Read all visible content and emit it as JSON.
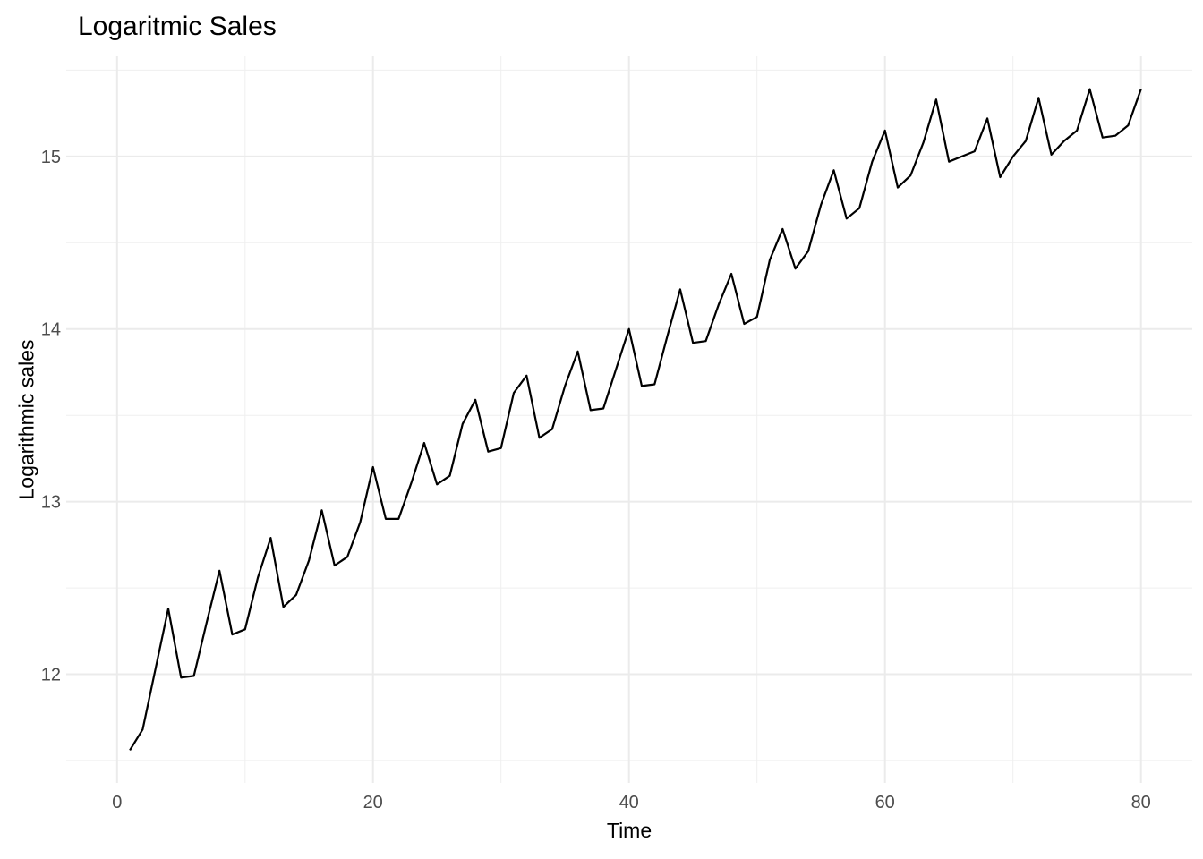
{
  "chart_data": {
    "type": "line",
    "title": "Logaritmic Sales",
    "xlabel": "Time",
    "ylabel": "Logarithmic sales",
    "legend": "none",
    "grid": true,
    "x_ticks": [
      0,
      20,
      40,
      60,
      80
    ],
    "x_minor_ticks": [
      10,
      30,
      50,
      70
    ],
    "y_ticks": [
      12,
      13,
      14,
      15
    ],
    "y_minor_ticks": [
      11.5,
      12.5,
      13.5,
      14.5,
      15.5
    ],
    "x_domain": [
      -3.97,
      84.01
    ],
    "y_domain": [
      11.37,
      15.58
    ],
    "x": [
      1,
      2,
      3,
      4,
      5,
      6,
      7,
      8,
      9,
      10,
      11,
      12,
      13,
      14,
      15,
      16,
      17,
      18,
      19,
      20,
      21,
      22,
      23,
      24,
      25,
      26,
      27,
      28,
      29,
      30,
      31,
      32,
      33,
      34,
      35,
      36,
      37,
      38,
      39,
      40,
      41,
      42,
      43,
      44,
      45,
      46,
      47,
      48,
      49,
      50,
      51,
      52,
      53,
      54,
      55,
      56,
      57,
      58,
      59,
      60,
      61,
      62,
      63,
      64,
      65,
      66,
      67,
      68,
      69,
      70,
      71,
      72,
      73,
      74,
      75,
      76,
      77,
      78,
      79,
      80
    ],
    "values": [
      11.56,
      11.68,
      12.03,
      12.38,
      11.98,
      11.99,
      12.3,
      12.6,
      12.23,
      12.26,
      12.56,
      12.79,
      12.39,
      12.46,
      12.66,
      12.95,
      12.63,
      12.68,
      12.88,
      13.2,
      12.9,
      12.9,
      13.11,
      13.34,
      13.1,
      13.15,
      13.45,
      13.59,
      13.29,
      13.31,
      13.63,
      13.73,
      13.37,
      13.42,
      13.67,
      13.87,
      13.53,
      13.54,
      13.77,
      14.0,
      13.67,
      13.68,
      13.96,
      14.23,
      13.92,
      13.93,
      14.14,
      14.32,
      14.03,
      14.07,
      14.4,
      14.58,
      14.35,
      14.45,
      14.72,
      14.92,
      14.64,
      14.7,
      14.97,
      15.15,
      14.82,
      14.89,
      15.08,
      15.33,
      14.97,
      15.0,
      15.03,
      15.22,
      14.88,
      15.0,
      15.09,
      15.34,
      15.01,
      15.09,
      15.15,
      15.39,
      15.11,
      15.12,
      15.18,
      15.39
    ],
    "colors": {
      "line": "#000000",
      "grid_major": "#EBEBEB",
      "grid_minor": "#EFEFEF",
      "tick_label": "#4D4D4D",
      "title_text": "#000000",
      "background": "#FFFFFF"
    }
  }
}
